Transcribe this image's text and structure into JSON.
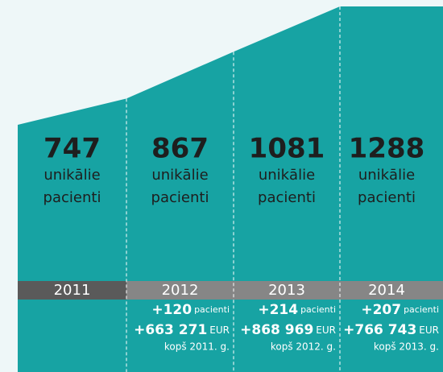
{
  "chart_data": {
    "type": "area",
    "color": "#17a3a3",
    "categories": [
      "2011",
      "2012",
      "2013",
      "2014"
    ],
    "values": [
      747,
      867,
      1081,
      1288
    ],
    "unit_lines": [
      "unikālie",
      "pacienti"
    ],
    "change_units": {
      "patients": "pacienti",
      "money": "EUR"
    },
    "changes": [
      null,
      {
        "patients": "+120",
        "money": "+663 271",
        "since": "kopš 2011. g."
      },
      {
        "patients": "+214",
        "money": "+868 969",
        "since": "kopš 2012. g."
      },
      {
        "patients": "+207",
        "money": "+766 743",
        "since": "kopš 2013. g."
      }
    ]
  }
}
